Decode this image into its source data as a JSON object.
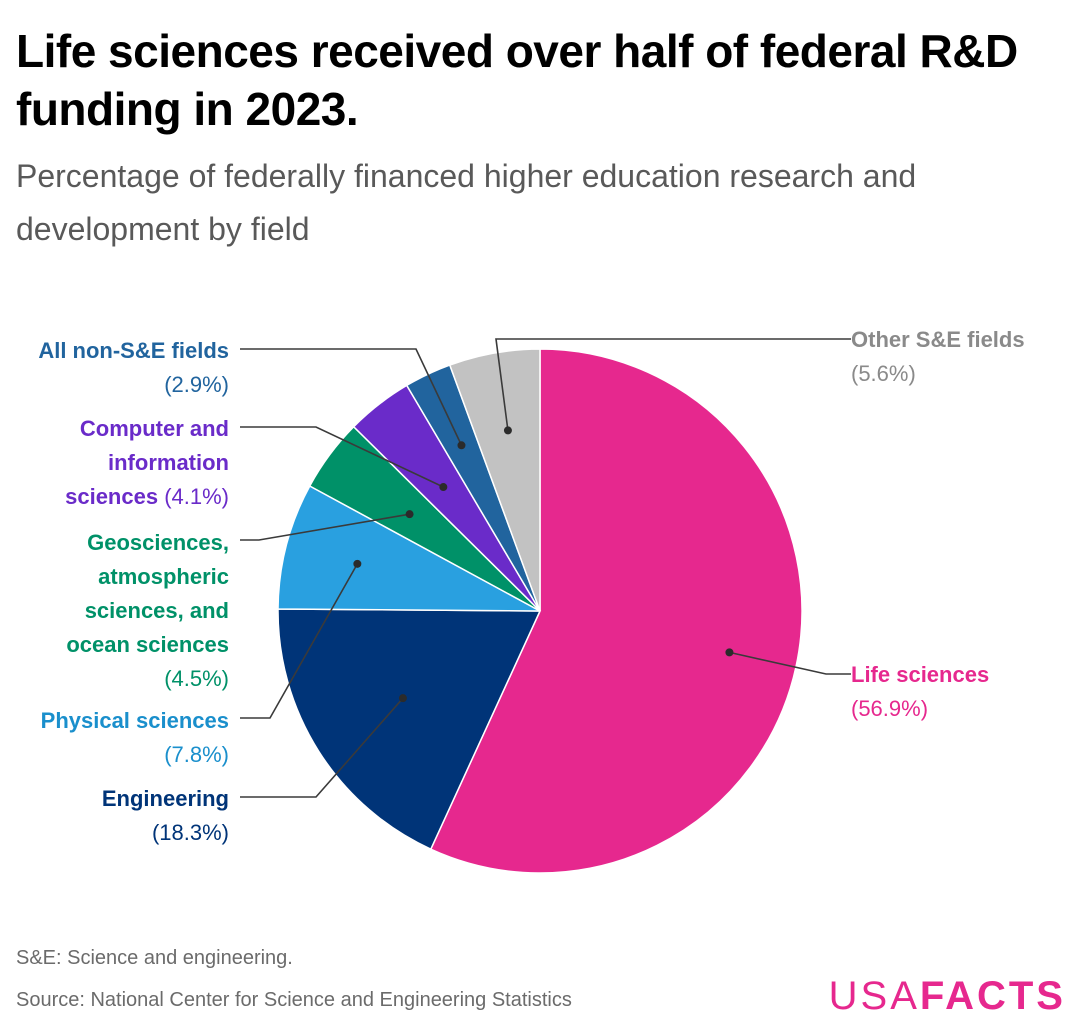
{
  "title": "Life sciences received over half of federal R&D funding in 2023.",
  "subtitle": "Percentage of federally financed higher education research and development by field",
  "note": "S&E: Science and engineering.",
  "source": "Source: National Center for Science and Engineering Statistics",
  "logo": {
    "part1": "USA",
    "part2": "FACTS"
  },
  "chart_data": {
    "type": "pie",
    "unit": "%",
    "slices": [
      {
        "label": "Life sciences",
        "value": 56.9,
        "value_text": "(56.9%)",
        "color": "#e6288e",
        "label_color": "#e6288e"
      },
      {
        "label": "Engineering",
        "value": 18.3,
        "value_text": "(18.3%)",
        "color": "#003478",
        "label_color": "#003478"
      },
      {
        "label": "Physical sciences",
        "value": 7.8,
        "value_text": "(7.8%)",
        "color": "#29a0e0",
        "label_color": "#1a8fcc"
      },
      {
        "label": "Geosciences, atmospheric sciences, and ocean sciences",
        "value": 4.5,
        "value_text": "(4.5%)",
        "color": "#009168",
        "label_color": "#009168"
      },
      {
        "label": "Computer and information sciences",
        "value": 4.1,
        "value_text": "(4.1%)",
        "color": "#6a2bc9",
        "label_color": "#6a2bc9"
      },
      {
        "label": "All non-S&E fields",
        "value": 2.9,
        "value_text": "(2.9%)",
        "color": "#21649e",
        "label_color": "#21649e"
      },
      {
        "label": "Other S&E fields",
        "value": 5.6,
        "value_text": "(5.6%)",
        "color": "#c2c2c2",
        "label_color": "#8a8a8a"
      }
    ]
  }
}
